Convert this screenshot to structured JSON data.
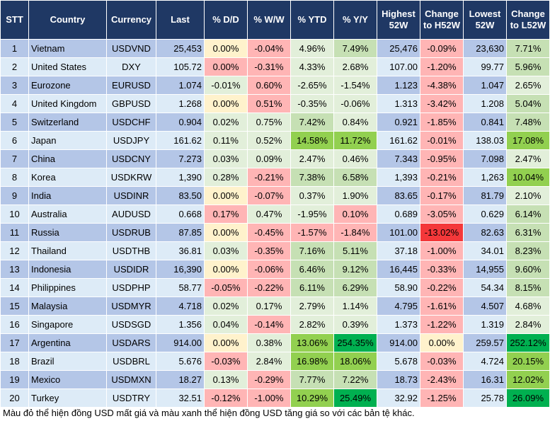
{
  "headers": [
    "STT",
    "Country",
    "Currency",
    "Last",
    "% D/D",
    "% W/W",
    "% YTD",
    "% Y/Y",
    "Highest 52W",
    "Change to H52W",
    "Lowest 52W",
    "Change to L52W"
  ],
  "colors": {
    "header": "#1f3864",
    "row_odd": "#b4c6e7",
    "row_even": "#ddebf7",
    "neutral_yellow": "#fff2cc",
    "usd_down_pink": "#ffb5b5",
    "usd_down_red": "#f4383a",
    "usd_up_light_green": "#e2efda",
    "usd_up_green": "#c6e0b4",
    "usd_up_bright_green": "#92d050",
    "usd_up_dark_green": "#00b050"
  },
  "rows": [
    {
      "stt": "1",
      "country": "Vietnam",
      "currency": "USDVND",
      "last": "25,453",
      "dd": "0.00%",
      "ww": "-0.04%",
      "ytd": "4.96%",
      "yy": "7.49%",
      "high": "25,476",
      "chh": "-0.09%",
      "low": "23,630",
      "chl": "7.71%",
      "shade": "YPgGPG"
    },
    {
      "stt": "2",
      "country": "United States",
      "currency": "DXY",
      "last": "105.72",
      "dd": "0.00%",
      "ww": "-0.31%",
      "ytd": "4.33%",
      "yy": "2.68%",
      "high": "107.00",
      "chh": "-1.20%",
      "low": "99.77",
      "chl": "5.96%",
      "shade": "PPggPG"
    },
    {
      "stt": "3",
      "country": "Eurozone",
      "currency": "EURUSD",
      "last": "1.074",
      "dd": "-0.01%",
      "ww": "0.60%",
      "ytd": "-2.65%",
      "yy": "-1.54%",
      "high": "1.123",
      "chh": "-4.38%",
      "low": "1.047",
      "chl": "2.65%",
      "shade": "gPggPg"
    },
    {
      "stt": "4",
      "country": "United Kingdom",
      "currency": "GBPUSD",
      "last": "1.268",
      "dd": "0.00%",
      "ww": "0.51%",
      "ytd": "-0.35%",
      "yy": "-0.06%",
      "high": "1.313",
      "chh": "-3.42%",
      "low": "1.208",
      "chl": "5.04%",
      "shade": "YPggPG"
    },
    {
      "stt": "5",
      "country": "Switzerland",
      "currency": "USDCHF",
      "last": "0.904",
      "dd": "0.02%",
      "ww": "0.75%",
      "ytd": "7.42%",
      "yy": "0.84%",
      "high": "0.921",
      "chh": "-1.85%",
      "low": "0.841",
      "chl": "7.48%",
      "shade": "ggGgPG"
    },
    {
      "stt": "6",
      "country": "Japan",
      "currency": "USDJPY",
      "last": "161.62",
      "dd": "0.11%",
      "ww": "0.52%",
      "ytd": "14.58%",
      "yy": "11.72%",
      "high": "161.62",
      "chh": "-0.01%",
      "low": "138.03",
      "chl": "17.08%",
      "shade": "ggBBPB"
    },
    {
      "stt": "7",
      "country": "China",
      "currency": "USDCNY",
      "last": "7.273",
      "dd": "0.03%",
      "ww": "0.09%",
      "ytd": "2.47%",
      "yy": "0.46%",
      "high": "7.343",
      "chh": "-0.95%",
      "low": "7.098",
      "chl": "2.47%",
      "shade": "ggggPg"
    },
    {
      "stt": "8",
      "country": "Korea",
      "currency": "USDKRW",
      "last": "1,390",
      "dd": "0.28%",
      "ww": "-0.21%",
      "ytd": "7.38%",
      "yy": "6.58%",
      "high": "1,393",
      "chh": "-0.21%",
      "low": "1,263",
      "chl": "10.04%",
      "shade": "gPGGPB"
    },
    {
      "stt": "9",
      "country": "India",
      "currency": "USDINR",
      "last": "83.50",
      "dd": "0.00%",
      "ww": "-0.07%",
      "ytd": "0.37%",
      "yy": "1.90%",
      "high": "83.65",
      "chh": "-0.17%",
      "low": "81.79",
      "chl": "2.10%",
      "shade": "YPggPg"
    },
    {
      "stt": "10",
      "country": "Australia",
      "currency": "AUDUSD",
      "last": "0.668",
      "dd": "0.17%",
      "ww": "0.47%",
      "ytd": "-1.95%",
      "yy": "0.10%",
      "high": "0.689",
      "chh": "-3.05%",
      "low": "0.629",
      "chl": "6.14%",
      "shade": "PggPPG"
    },
    {
      "stt": "11",
      "country": "Russia",
      "currency": "USDRUB",
      "last": "87.85",
      "dd": "0.00%",
      "ww": "-0.45%",
      "ytd": "-1.57%",
      "yy": "-1.84%",
      "high": "101.00",
      "chh": "-13.02%",
      "low": "82.63",
      "chl": "6.31%",
      "shade": "YPPPRG"
    },
    {
      "stt": "12",
      "country": "Thailand",
      "currency": "USDTHB",
      "last": "36.81",
      "dd": "0.03%",
      "ww": "-0.35%",
      "ytd": "7.16%",
      "yy": "5.11%",
      "high": "37.18",
      "chh": "-1.00%",
      "low": "34.01",
      "chl": "8.23%",
      "shade": "gPGGPG"
    },
    {
      "stt": "13",
      "country": "Indonesia",
      "currency": "USDIDR",
      "last": "16,390",
      "dd": "0.00%",
      "ww": "-0.06%",
      "ytd": "6.46%",
      "yy": "9.12%",
      "high": "16,445",
      "chh": "-0.33%",
      "low": "14,955",
      "chl": "9.60%",
      "shade": "YPGGPG"
    },
    {
      "stt": "14",
      "country": "Philippines",
      "currency": "USDPHP",
      "last": "58.77",
      "dd": "-0.05%",
      "ww": "-0.22%",
      "ytd": "6.11%",
      "yy": "6.29%",
      "high": "58.90",
      "chh": "-0.22%",
      "low": "54.34",
      "chl": "8.15%",
      "shade": "PPGGPG"
    },
    {
      "stt": "15",
      "country": "Malaysia",
      "currency": "USDMYR",
      "last": "4.718",
      "dd": "0.02%",
      "ww": "0.17%",
      "ytd": "2.79%",
      "yy": "1.14%",
      "high": "4.795",
      "chh": "-1.61%",
      "low": "4.507",
      "chl": "4.68%",
      "shade": "ggggPg"
    },
    {
      "stt": "16",
      "country": "Singapore",
      "currency": "USDSGD",
      "last": "1.356",
      "dd": "0.04%",
      "ww": "-0.14%",
      "ytd": "2.82%",
      "yy": "0.39%",
      "high": "1.373",
      "chh": "-1.22%",
      "low": "1.319",
      "chl": "2.84%",
      "shade": "gPggPg"
    },
    {
      "stt": "17",
      "country": "Argentina",
      "currency": "USDARS",
      "last": "914.00",
      "dd": "0.00%",
      "ww": "0.38%",
      "ytd": "13.06%",
      "yy": "254.35%",
      "high": "914.00",
      "chh": "0.00%",
      "low": "259.57",
      "chl": "252.12%",
      "shade": "YgBDYD"
    },
    {
      "stt": "18",
      "country": "Brazil",
      "currency": "USDBRL",
      "last": "5.676",
      "dd": "-0.03%",
      "ww": "2.84%",
      "ytd": "16.98%",
      "yy": "18.06%",
      "high": "5.678",
      "chh": "-0.03%",
      "low": "4.724",
      "chl": "20.15%",
      "shade": "PgBBPB"
    },
    {
      "stt": "19",
      "country": "Mexico",
      "currency": "USDMXN",
      "last": "18.27",
      "dd": "0.13%",
      "ww": "-0.29%",
      "ytd": "7.77%",
      "yy": "7.22%",
      "high": "18.73",
      "chh": "-2.43%",
      "low": "16.31",
      "chl": "12.02%",
      "shade": "gPGGPB"
    },
    {
      "stt": "20",
      "country": "Turkey",
      "currency": "USDTRY",
      "last": "32.51",
      "dd": "-0.12%",
      "ww": "-1.00%",
      "ytd": "10.29%",
      "yy": "25.49%",
      "high": "32.92",
      "chh": "-1.25%",
      "low": "25.78",
      "chl": "26.09%",
      "shade": "PPBDPD"
    }
  ],
  "footnote": "Màu đỏ thể hiện đồng USD mất giá và màu xanh thể hiện đồng USD tăng giá so với các bản tệ khác."
}
